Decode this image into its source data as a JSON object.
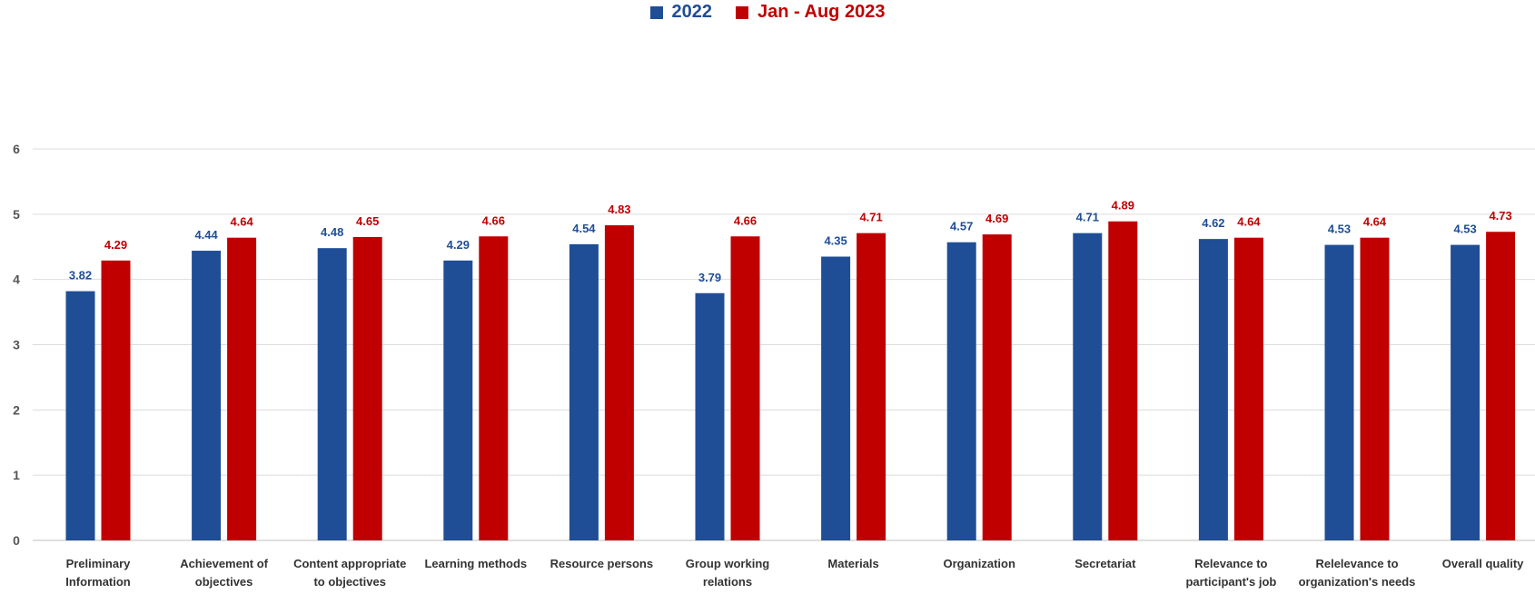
{
  "chart_data": {
    "type": "bar",
    "categories": [
      [
        "Preliminary",
        "Information"
      ],
      [
        "Achievement of",
        "objectives"
      ],
      [
        "Content appropriate",
        "to objectives"
      ],
      [
        "Learning methods"
      ],
      [
        "Resource persons"
      ],
      [
        "Group working",
        "relations"
      ],
      [
        "Materials"
      ],
      [
        "Organization"
      ],
      [
        "Secretariat"
      ],
      [
        "Relevance to",
        "participant's job"
      ],
      [
        "Relelevance to",
        "organization's needs"
      ],
      [
        "Overall quality"
      ]
    ],
    "series": [
      {
        "name": "2022",
        "color": "#1f4e96",
        "values": [
          3.82,
          4.44,
          4.48,
          4.29,
          4.54,
          3.79,
          4.35,
          4.57,
          4.71,
          4.62,
          4.53,
          4.53
        ]
      },
      {
        "name": "Jan - Aug 2023",
        "color": "#c00000",
        "values": [
          4.29,
          4.64,
          4.65,
          4.66,
          4.83,
          4.66,
          4.71,
          4.69,
          4.89,
          4.64,
          4.64,
          4.73
        ]
      }
    ],
    "yticks": [
      0,
      1,
      2,
      3,
      4,
      5,
      6
    ],
    "ylim": [
      0,
      6
    ],
    "grid": true,
    "legend_position": "top-center"
  }
}
